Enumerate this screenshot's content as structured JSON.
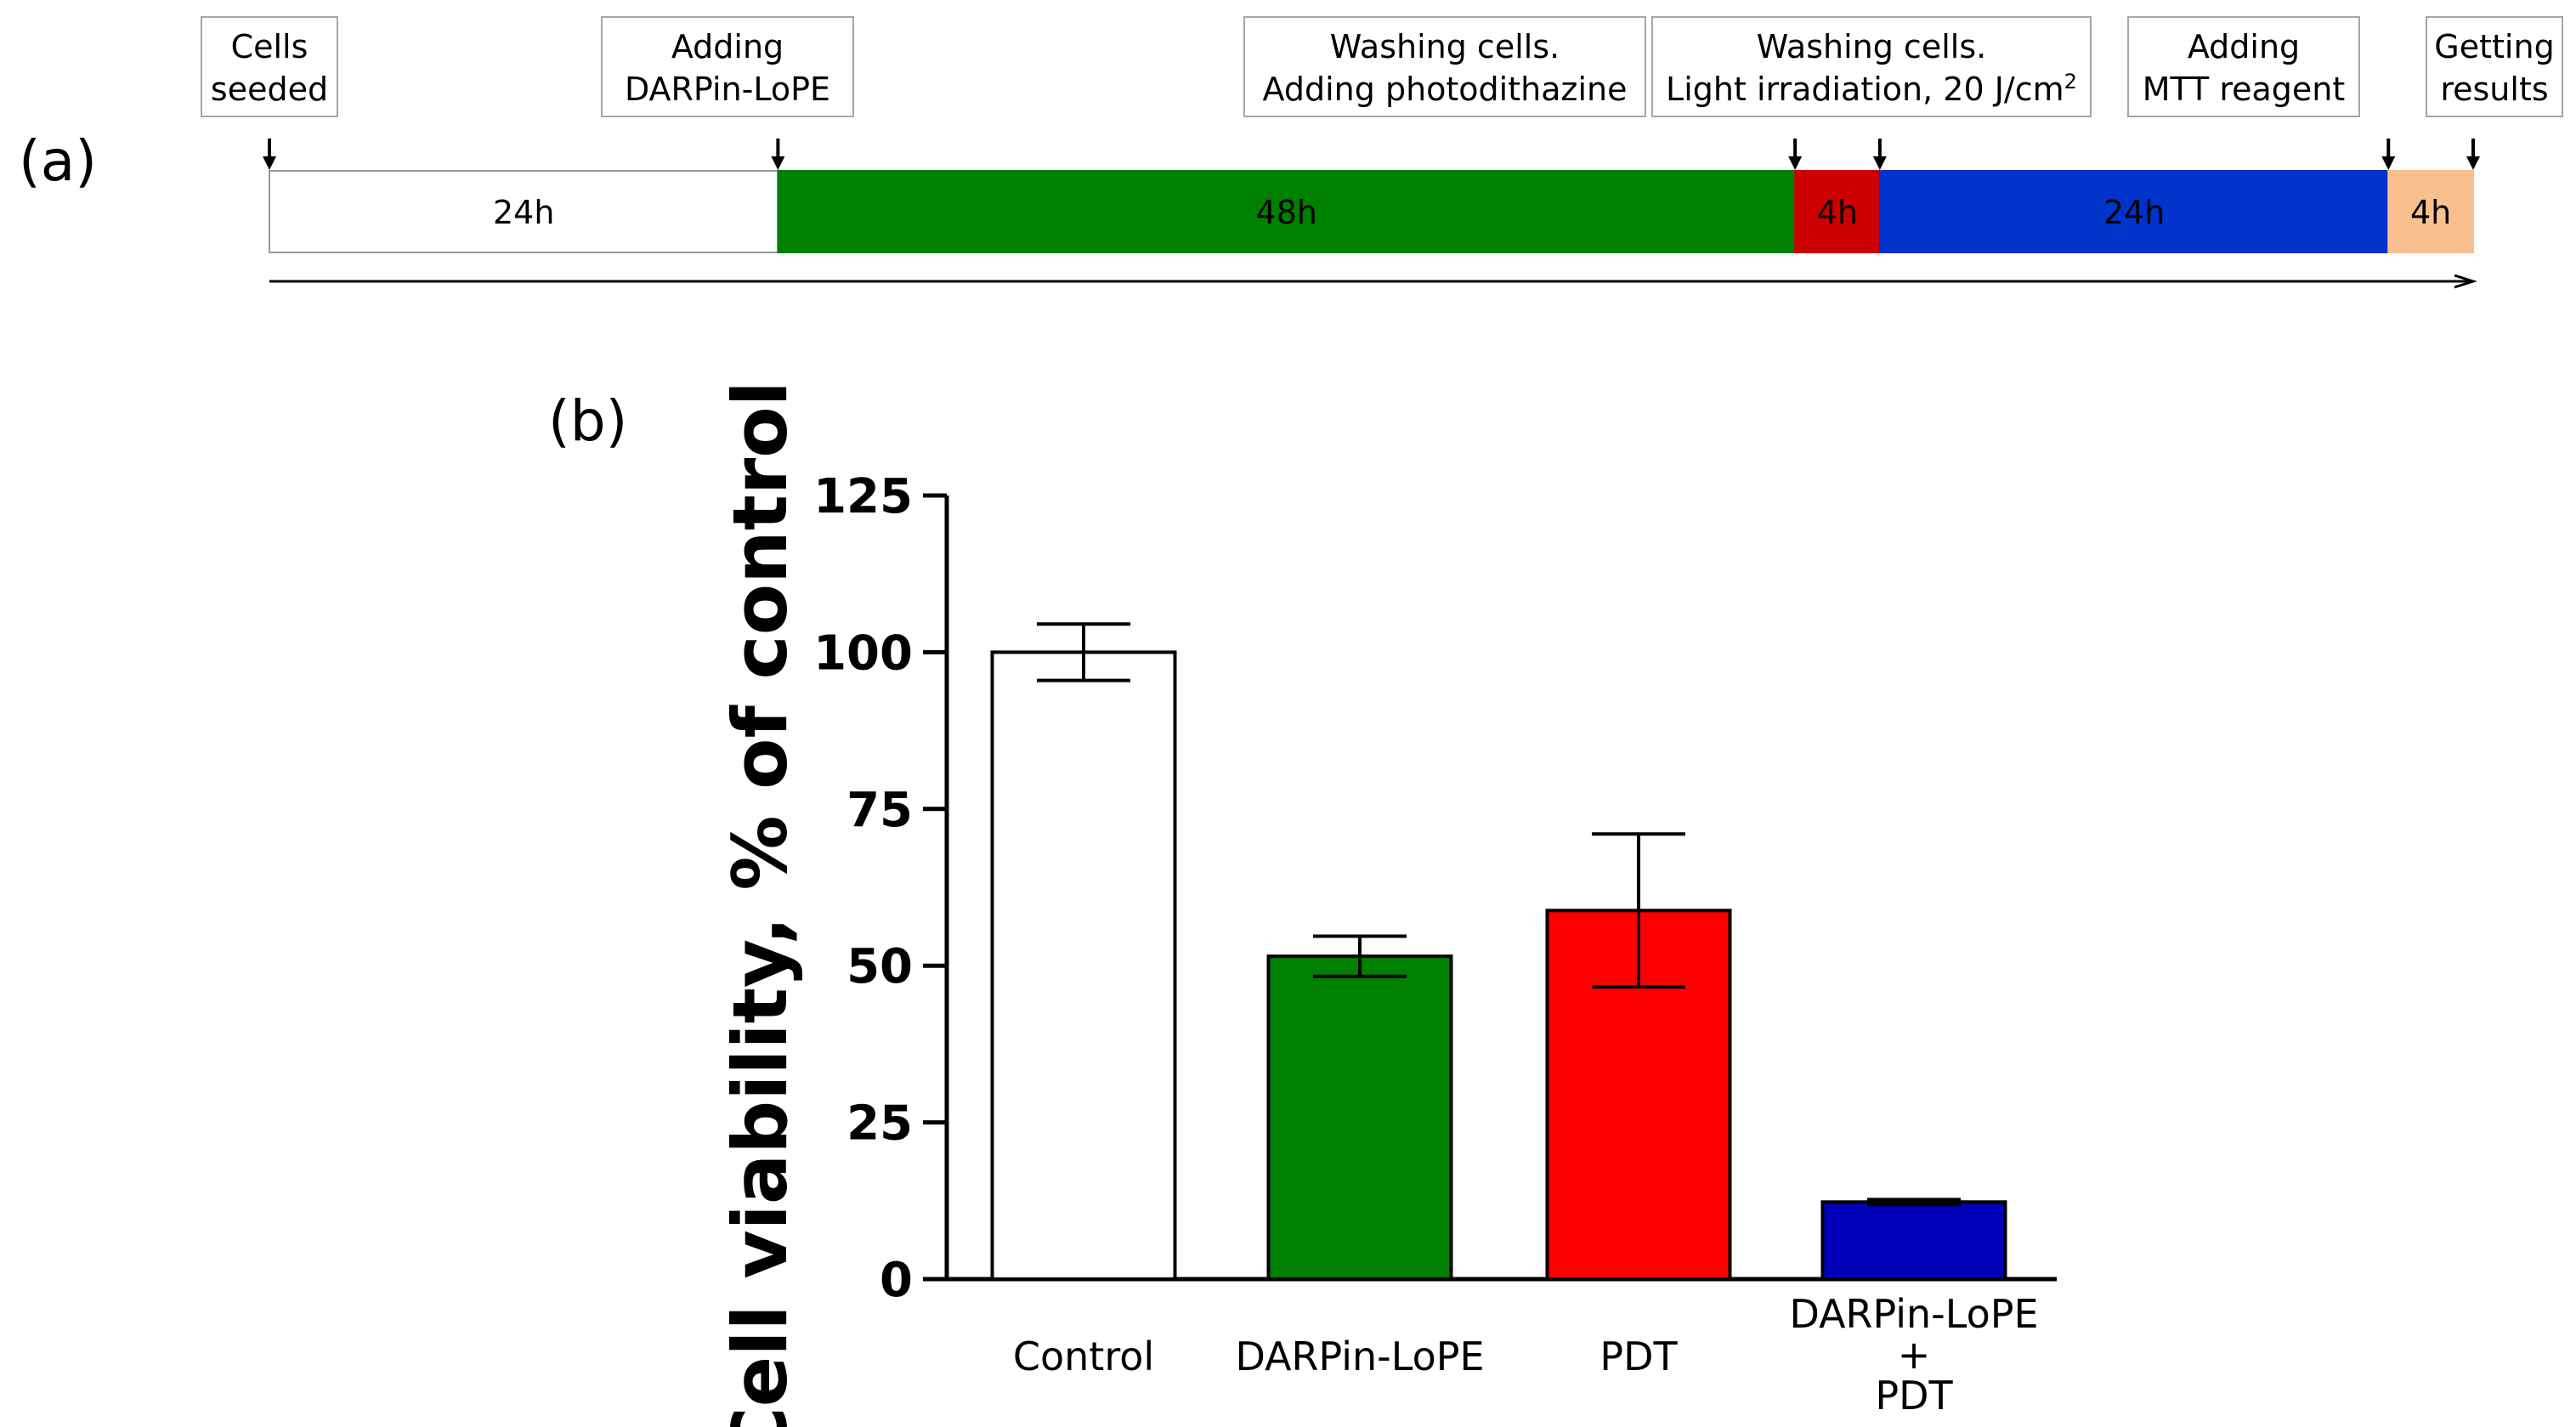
{
  "panel_a": {
    "label": "(a)",
    "events": [
      {
        "lines": [
          "Cells",
          "seeded"
        ]
      },
      {
        "lines": [
          "Adding",
          "DARPin-LoPE"
        ]
      },
      {
        "lines": [
          "Washing cells.",
          "Adding photodithazine"
        ]
      },
      {
        "lines": [
          "Washing cells.",
          "Light irradiation, 20 J/cm",
          "2"
        ]
      },
      {
        "lines": [
          "Adding",
          "MTT reagent"
        ]
      },
      {
        "lines": [
          "Getting",
          "results"
        ]
      }
    ],
    "segments": [
      {
        "label": "24h",
        "hours": 24,
        "color": "#ffffff"
      },
      {
        "label": "48h",
        "hours": 48,
        "color": "#008000"
      },
      {
        "label": "4h",
        "hours": 4,
        "color": "#cc0000"
      },
      {
        "label": "24h",
        "hours": 24,
        "color": "#0033cc"
      },
      {
        "label": "4h",
        "hours": 4,
        "color": "#f9c08f"
      }
    ]
  },
  "panel_b": {
    "label": "(b)"
  },
  "chart_data": {
    "type": "bar",
    "title": "",
    "xlabel": "",
    "ylabel": "Cell viability, % of control",
    "ylim": [
      0,
      125
    ],
    "yticks": [
      0,
      25,
      50,
      75,
      100,
      125
    ],
    "yticklabels": [
      "0",
      "25",
      "50",
      "75",
      "100",
      "125"
    ],
    "categories": [
      [
        "Control"
      ],
      [
        "DARPin-LoPE"
      ],
      [
        "PDT"
      ],
      [
        "DARPin-LoPE",
        "+",
        "PDT"
      ]
    ],
    "values": [
      100,
      51.5,
      58.8,
      12.3
    ],
    "errors": [
      4.5,
      3.2,
      12.2,
      0.4
    ],
    "colors": [
      "#ffffff",
      "#008000",
      "#ff0000",
      "#0000bb"
    ]
  }
}
